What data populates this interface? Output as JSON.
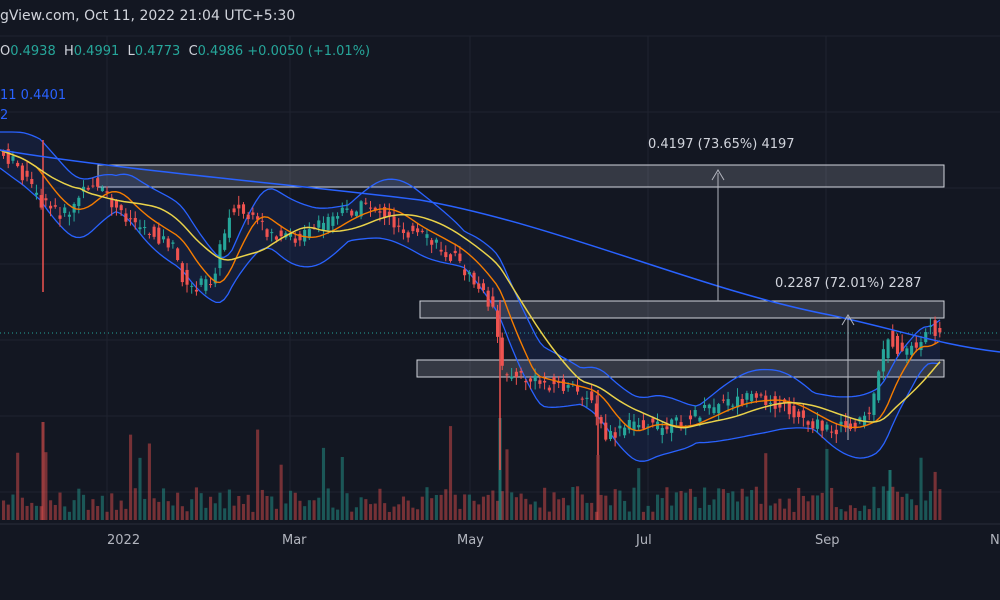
{
  "header": {
    "title": "gView.com, Oct 11, 2022 21:04 UTC+5:30",
    "ohlc": {
      "open_label": "O",
      "open": "0.4938",
      "high_label": "H",
      "high": "0.4991",
      "low_label": "L",
      "low": "0.4773",
      "close_label": "C",
      "close": "0.4986",
      "change": "+0.0050 (+1.01%)"
    },
    "indicator_line_1": "11  0.4401",
    "indicator_line_2": "2"
  },
  "chart_data": {
    "type": "candlestick",
    "x_axis_ticks": [
      "2022",
      "Mar",
      "May",
      "Jul",
      "Sep",
      "N"
    ],
    "measurements": [
      {
        "label": "0.4197 (73.65%) 4197"
      },
      {
        "label": "0.2287 (72.01%) 2287"
      }
    ],
    "colors": {
      "up": "#26a69a",
      "down": "#ef5350",
      "bollinger": "#2962ff",
      "ma_fast": "#f57c00",
      "ma_slow": "#e9d24a",
      "ma_long": "#2962ff",
      "zone_fill": "#b2b5be"
    },
    "grid": true
  }
}
